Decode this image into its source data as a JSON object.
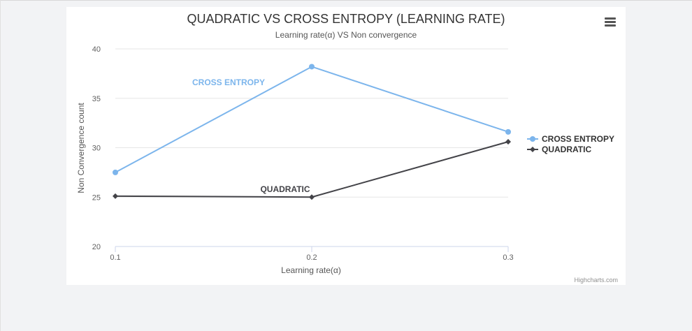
{
  "chart_data": {
    "type": "line",
    "title": "QUADRATIC VS CROSS ENTROPY (LEARNING RATE)",
    "subtitle": "Learning rate(α) VS Non convergence",
    "xlabel": "Learning rate(α)",
    "ylabel": "Non Convergence count",
    "categories": [
      "0.1",
      "0.2",
      "0.3"
    ],
    "ylim": [
      20,
      40
    ],
    "yticks": [
      20,
      25,
      30,
      35,
      40
    ],
    "grid": true,
    "legend_position": "right",
    "series": [
      {
        "name": "CROSS ENTROPY",
        "values": [
          27.5,
          38.2,
          31.6
        ],
        "color": "#7cb5ec",
        "marker": "circle"
      },
      {
        "name": "QUADRATIC",
        "values": [
          25.1,
          25.0,
          30.6
        ],
        "color": "#434348",
        "marker": "diamond"
      }
    ],
    "annotations": [
      {
        "text": "CROSS ENTROPY",
        "series": 0
      },
      {
        "text": "QUADRATIC",
        "series": 1
      }
    ],
    "credits": "Highcharts.com"
  },
  "menu": {
    "icon": "hamburger-menu-icon"
  }
}
